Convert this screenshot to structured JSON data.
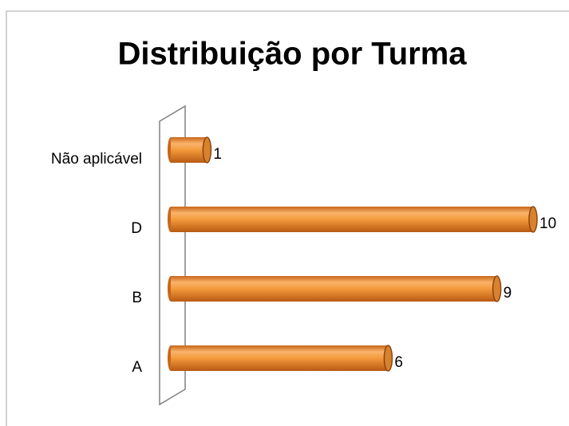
{
  "chart_data": {
    "type": "bar",
    "orientation": "horizontal",
    "title": "Distribuição por Turma",
    "categories": [
      "A",
      "B",
      "D",
      "Não aplicável"
    ],
    "values": [
      6,
      9,
      10,
      1
    ],
    "color": "#f0922e"
  }
}
